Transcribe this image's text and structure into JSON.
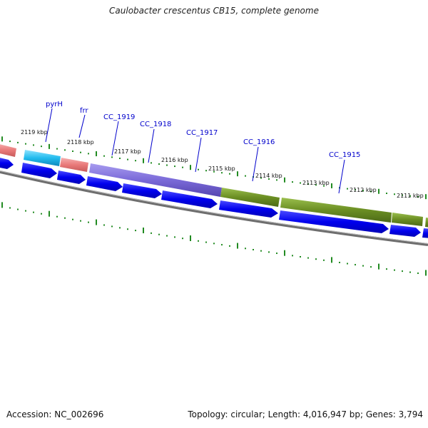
{
  "title": "Caulobacter crescentus CB15, complete genome",
  "accession": "Accession: NC_002696",
  "summary": "Topology: circular; Length: 4,016,947 bp; Genes: 3,794",
  "kbp_labels": [
    "2119 kbp",
    "2118 kbp",
    "2117 kbp",
    "2116 kbp",
    "2115 kbp",
    "2114 kbp",
    "2113 kbp",
    "2112 kbp",
    "2111 kbp"
  ],
  "gene_labels": [
    "pyrH",
    "frr",
    "CC_1919",
    "CC_1918",
    "CC_1917",
    "CC_1916",
    "CC_1915"
  ],
  "colors": {
    "cds": "#0000ee",
    "pink": "#ee7b7b",
    "cyan": "#22bbee",
    "purple": "#7a6ad8",
    "olive": "#6b8e23",
    "tick": "#228b22",
    "backbone": "#777777",
    "label": "#0000cc"
  }
}
